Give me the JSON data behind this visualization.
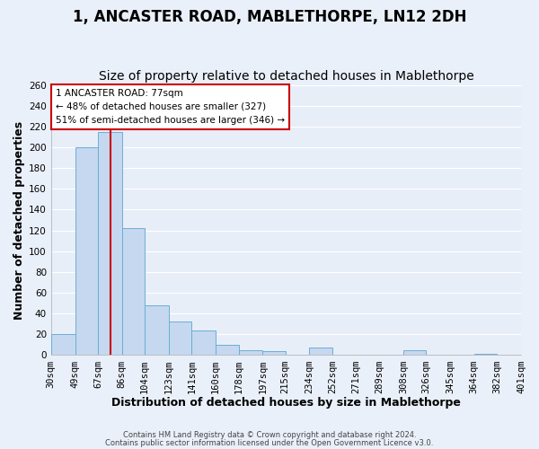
{
  "title": "1, ANCASTER ROAD, MABLETHORPE, LN12 2DH",
  "subtitle": "Size of property relative to detached houses in Mablethorpe",
  "xlabel": "Distribution of detached houses by size in Mablethorpe",
  "ylabel": "Number of detached properties",
  "bin_labels": [
    "30sqm",
    "49sqm",
    "67sqm",
    "86sqm",
    "104sqm",
    "123sqm",
    "141sqm",
    "160sqm",
    "178sqm",
    "197sqm",
    "215sqm",
    "234sqm",
    "252sqm",
    "271sqm",
    "289sqm",
    "308sqm",
    "326sqm",
    "345sqm",
    "364sqm",
    "382sqm",
    "401sqm"
  ],
  "bin_edges": [
    30,
    49,
    67,
    86,
    104,
    123,
    141,
    160,
    178,
    197,
    215,
    234,
    252,
    271,
    289,
    308,
    326,
    345,
    364,
    382,
    401
  ],
  "bar_heights": [
    20,
    200,
    215,
    122,
    48,
    32,
    24,
    10,
    5,
    4,
    0,
    7,
    0,
    0,
    0,
    5,
    0,
    0,
    1,
    0,
    0
  ],
  "bar_color": "#C5D8EF",
  "bar_edge_color": "#6BAED6",
  "vline_x": 77,
  "vline_color": "#CC0000",
  "annotation_title": "1 ANCASTER ROAD: 77sqm",
  "annotation_line1": "← 48% of detached houses are smaller (327)",
  "annotation_line2": "51% of semi-detached houses are larger (346) →",
  "annotation_box_color": "#CC0000",
  "footer_line1": "Contains HM Land Registry data © Crown copyright and database right 2024.",
  "footer_line2": "Contains public sector information licensed under the Open Government Licence v3.0.",
  "ylim": [
    0,
    260
  ],
  "yticks": [
    0,
    20,
    40,
    60,
    80,
    100,
    120,
    140,
    160,
    180,
    200,
    220,
    240,
    260
  ],
  "bg_color": "#EAF0FA",
  "plot_bg_color": "#E8EEF8",
  "grid_color": "#FFFFFF",
  "title_fontsize": 12,
  "subtitle_fontsize": 10,
  "axis_label_fontsize": 9,
  "tick_fontsize": 7.5
}
